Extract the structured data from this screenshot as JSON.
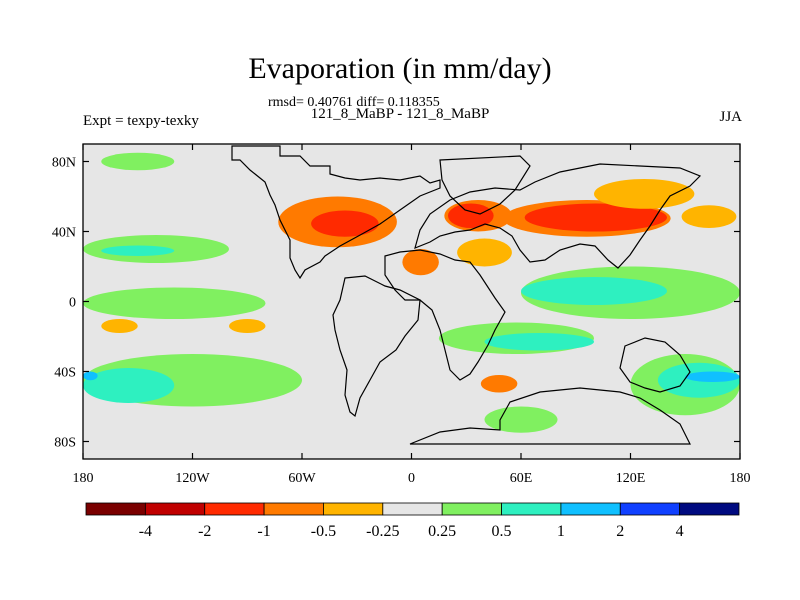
{
  "chart_data": {
    "type": "heatmap",
    "title": "Evaporation (in mm/day)",
    "subtitle_stats": "rmsd= 0.40761 diff= 0.118355",
    "subtitle_case": "121_8_MaBP - 121_8_MaBP",
    "left_label": "Expt = texpy-texky",
    "right_label": "JJA",
    "x_ticks": [
      "180",
      "120W",
      "60W",
      "0",
      "60E",
      "120E",
      "180"
    ],
    "x_tick_values": [
      -180,
      -120,
      -60,
      0,
      60,
      120,
      180
    ],
    "y_ticks": [
      "80N",
      "40N",
      "0",
      "40S",
      "80S"
    ],
    "y_tick_values": [
      80,
      40,
      0,
      -40,
      -80
    ],
    "xlim": [
      -180,
      180
    ],
    "ylim": [
      -90,
      90
    ],
    "colorbar": {
      "colors": [
        "#7a0000",
        "#c00000",
        "#ff2a00",
        "#ff7a00",
        "#ffb400",
        "#e6e6e6",
        "#80f060",
        "#2ef0c0",
        "#10c0ff",
        "#1040ff",
        "#000a80"
      ],
      "labels": [
        "-4",
        "-2",
        "-1",
        "-0.5",
        "-0.25",
        "0.25",
        "0.5",
        "1",
        "2",
        "4"
      ]
    },
    "regions": [
      {
        "level": -0.5,
        "lon": [
          -73,
          -8
        ],
        "lat": [
          31,
          60
        ]
      },
      {
        "level": -1,
        "lon": [
          -55,
          -18
        ],
        "lat": [
          37,
          52
        ]
      },
      {
        "level": -0.5,
        "lon": [
          -5,
          15
        ],
        "lat": [
          15,
          30
        ]
      },
      {
        "level": -0.5,
        "lon": [
          18,
          55
        ],
        "lat": [
          40,
          58
        ]
      },
      {
        "level": -1,
        "lon": [
          20,
          45
        ],
        "lat": [
          42,
          56
        ]
      },
      {
        "level": -0.5,
        "lon": [
          50,
          142
        ],
        "lat": [
          37,
          58
        ]
      },
      {
        "level": -1,
        "lon": [
          62,
          140
        ],
        "lat": [
          40,
          56
        ]
      },
      {
        "level": -0.25,
        "lon": [
          25,
          55
        ],
        "lat": [
          20,
          36
        ]
      },
      {
        "level": -0.25,
        "lon": [
          100,
          155
        ],
        "lat": [
          53,
          70
        ]
      },
      {
        "level": -0.25,
        "lon": [
          148,
          178
        ],
        "lat": [
          42,
          55
        ]
      },
      {
        "level": -0.5,
        "lon": [
          38,
          58
        ],
        "lat": [
          -52,
          -42
        ]
      },
      {
        "level": -0.25,
        "lon": [
          -170,
          -150
        ],
        "lat": [
          -18,
          -10
        ]
      },
      {
        "level": -0.25,
        "lon": [
          -100,
          -80
        ],
        "lat": [
          -18,
          -10
        ]
      },
      {
        "level": 0.25,
        "lon": [
          -180,
          -60
        ],
        "lat": [
          -60,
          -30
        ]
      },
      {
        "level": 0.5,
        "lon": [
          -180,
          -130
        ],
        "lat": [
          -58,
          -38
        ]
      },
      {
        "level": 1,
        "lon": [
          -180,
          -172
        ],
        "lat": [
          -45,
          -40
        ]
      },
      {
        "level": 0.25,
        "lon": [
          120,
          180
        ],
        "lat": [
          -65,
          -30
        ]
      },
      {
        "level": 0.5,
        "lon": [
          135,
          180
        ],
        "lat": [
          -55,
          -35
        ]
      },
      {
        "level": 1,
        "lon": [
          150,
          180
        ],
        "lat": [
          -46,
          -40
        ]
      },
      {
        "level": 0.25,
        "lon": [
          -180,
          -80
        ],
        "lat": [
          -10,
          8
        ]
      },
      {
        "level": 0.25,
        "lon": [
          -180,
          -100
        ],
        "lat": [
          22,
          38
        ]
      },
      {
        "level": 0.5,
        "lon": [
          -170,
          -130
        ],
        "lat": [
          26,
          32
        ]
      },
      {
        "level": 0.25,
        "lon": [
          60,
          180
        ],
        "lat": [
          -10,
          20
        ]
      },
      {
        "level": 0.5,
        "lon": [
          60,
          140
        ],
        "lat": [
          -2,
          14
        ]
      },
      {
        "level": 0.25,
        "lon": [
          15,
          100
        ],
        "lat": [
          -30,
          -12
        ]
      },
      {
        "level": 0.5,
        "lon": [
          40,
          100
        ],
        "lat": [
          -28,
          -18
        ]
      },
      {
        "level": 0.25,
        "lon": [
          40,
          80
        ],
        "lat": [
          -75,
          -60
        ]
      },
      {
        "level": 0.25,
        "lon": [
          -170,
          -130
        ],
        "lat": [
          75,
          85
        ]
      }
    ]
  }
}
